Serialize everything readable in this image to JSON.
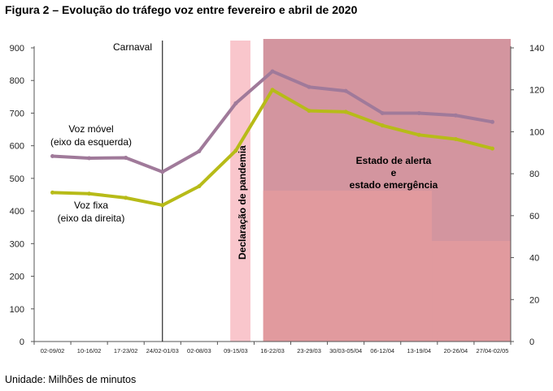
{
  "title": "Figura 2 – Evolução do tráfego voz entre fevereiro e abril de 2020",
  "footer": "Unidade: Milhões de minutos",
  "chart_data": {
    "type": "line",
    "categories": [
      "02-09/02",
      "10-16/02",
      "17-23/02",
      "24/02-01/03",
      "02-08/03",
      "09-15/03",
      "16-22/03",
      "23-29/03",
      "30/03-05/04",
      "06-12/04",
      "13-19/04",
      "20-26/04",
      "27/04-02/05"
    ],
    "series": [
      {
        "name": "Voz móvel (eixo da esquerda)",
        "axis": "left",
        "color": "#a07a9a",
        "values": [
          568,
          562,
          563,
          520,
          583,
          730,
          828,
          780,
          768,
          700,
          700,
          693,
          673
        ]
      },
      {
        "name": "Voz fixa (eixo da direita)",
        "axis": "right",
        "color": "#b7bb18",
        "values": [
          71,
          70.5,
          68.5,
          65,
          74,
          91,
          120,
          110,
          109.5,
          103,
          98.5,
          96.5,
          92
        ]
      }
    ],
    "y_left": {
      "min": 0,
      "max": 900,
      "ticks": [
        0,
        100,
        200,
        300,
        400,
        500,
        600,
        700,
        800,
        900
      ]
    },
    "y_right": {
      "min": 0,
      "max": 140,
      "ticks": [
        0,
        20,
        40,
        60,
        80,
        100,
        120,
        140
      ]
    },
    "annotations": {
      "carnaval": "Carnaval",
      "pandemia": "Declaração de pandemia",
      "estado": [
        "Estado de alerta",
        "e",
        "estado emergência"
      ],
      "movel_label": [
        "Voz móvel",
        "(eixo da esquerda)"
      ],
      "fixa_label": [
        "Voz fixa",
        "(eixo da direita)"
      ]
    },
    "colors": {
      "pandemic_band": "#f9c6cc",
      "state_band": "#d3959f",
      "state_band_lower": "#e19a9e",
      "axis": "#555555"
    }
  }
}
